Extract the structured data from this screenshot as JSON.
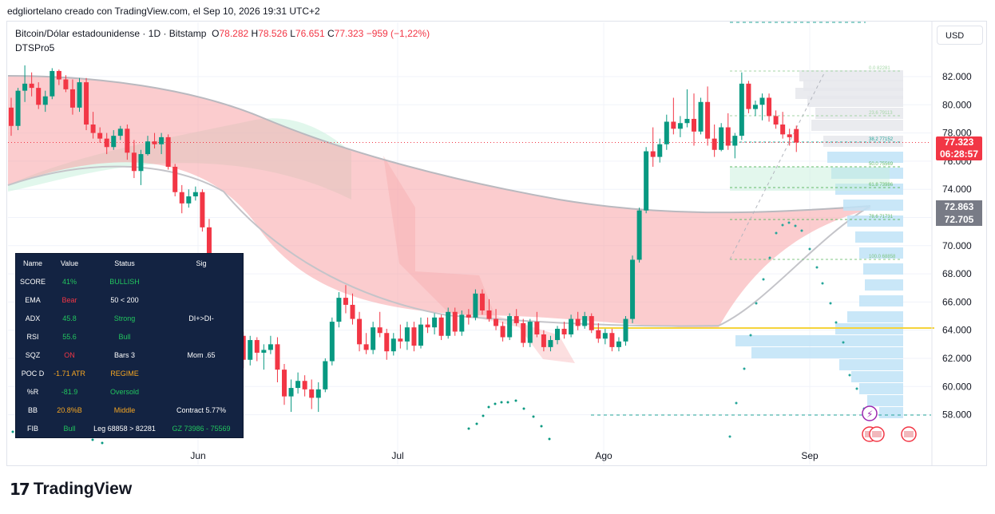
{
  "header": {
    "author_line": "edgliortelano creado con TradingView.com, el Sep 10, 2026 19:31 UTC+2"
  },
  "symbol": {
    "name": "Bitcoin/Dólar estadounidense · 1D · Bitstamp",
    "o_label": "O",
    "o_value": "78.282",
    "h_label": "H",
    "h_value": "78.526",
    "l_label": "L",
    "l_value": "76.651",
    "c_label": "C",
    "c_value": "77.323",
    "change": "−959 (−1,22%)"
  },
  "indicator_name": "DTSPro5",
  "currency_button": "USD",
  "price_labels": {
    "last": "77.323",
    "countdown": "06:28:57",
    "level_a": "72.863",
    "level_b": "72.705"
  },
  "colors": {
    "up": "#089981",
    "down": "#f23645",
    "cloud_red": "#f7a3a6",
    "cloud_green": "#c8f0dc",
    "volume_profile": "#bfe3f7",
    "poc_line": "#f5d33b",
    "table_bg": "#132342"
  },
  "fib": [
    {
      "label": "0.0 82281"
    },
    {
      "label": "23.6 79113"
    },
    {
      "label": "38.2 77152"
    },
    {
      "label": "50.0 75569"
    },
    {
      "label": "61.8 73986"
    },
    {
      "label": "78.6 71731"
    },
    {
      "label": "100.0 68858"
    }
  ],
  "table": {
    "headers": [
      "Name",
      "Value",
      "Status",
      "Sig"
    ],
    "rows": [
      {
        "name": "SCORE",
        "value": "41%",
        "value_color": "#22c55e",
        "status": "BULLISH",
        "status_color": "#22c55e",
        "sig": ""
      },
      {
        "name": "EMA",
        "value": "Bear",
        "value_color": "#f23645",
        "status": "50 < 200",
        "status_color": "#ffffff",
        "sig": ""
      },
      {
        "name": "ADX",
        "value": "45.8",
        "value_color": "#22c55e",
        "status": "Strong",
        "status_color": "#22c55e",
        "sig": "DI+>DI-"
      },
      {
        "name": "RSI",
        "value": "55.6",
        "value_color": "#22c55e",
        "status": "Bull",
        "status_color": "#22c55e",
        "sig": ""
      },
      {
        "name": "SQZ",
        "value": "ON",
        "value_color": "#f23645",
        "status": "Bars 3",
        "status_color": "#ffffff",
        "sig": "Mom .65"
      },
      {
        "name": "POC D",
        "value": "-1.71 ATR",
        "value_color": "#f5a623",
        "status": "REGIME",
        "status_color": "#f5a623",
        "sig": ""
      },
      {
        "name": "%R",
        "value": "-81.9",
        "value_color": "#22c55e",
        "status": "Oversold",
        "status_color": "#22c55e",
        "sig": ""
      },
      {
        "name": "BB",
        "value": "20.8%B",
        "value_color": "#f5a623",
        "status": "Middle",
        "status_color": "#f5a623",
        "sig": "Contract 5.77%"
      },
      {
        "name": "FIB",
        "value": "Bull",
        "value_color": "#22c55e",
        "status": "Leg 68858 > 82281",
        "status_color": "#ffffff",
        "sig": "GZ 73986 - 75569",
        "sig_color": "#22c55e"
      }
    ]
  },
  "chart_data": {
    "type": "candlestick",
    "y_ticks": [
      "82.000",
      "80.000",
      "78.000",
      "76.000",
      "74.000",
      "72.000",
      "70.000",
      "68.000",
      "66.000",
      "64.000",
      "62.000",
      "60.000",
      "58.000"
    ],
    "x_ticks": [
      "Jun",
      "Jul",
      "Ago",
      "Sep"
    ],
    "ylim": [
      57000,
      83500
    ],
    "last_close": 77323,
    "poc_level": 64100,
    "ohlc": [
      [
        79800,
        80500,
        77800,
        78500
      ],
      [
        78500,
        81200,
        78200,
        81000
      ],
      [
        81000,
        82800,
        80200,
        81500
      ],
      [
        81500,
        82300,
        80600,
        81200
      ],
      [
        81200,
        81600,
        79700,
        80000
      ],
      [
        80000,
        81000,
        79500,
        80600
      ],
      [
        80600,
        82600,
        80400,
        82400
      ],
      [
        82400,
        82500,
        81400,
        81800
      ],
      [
        81800,
        82100,
        80900,
        81100
      ],
      [
        81100,
        81800,
        79300,
        79800
      ],
      [
        79800,
        81900,
        79500,
        81600
      ],
      [
        81600,
        81900,
        78200,
        78600
      ],
      [
        78600,
        79500,
        77600,
        78000
      ],
      [
        78000,
        78400,
        77300,
        77600
      ],
      [
        77600,
        78000,
        76500,
        77000
      ],
      [
        77000,
        78200,
        76800,
        77800
      ],
      [
        77800,
        78500,
        77500,
        78300
      ],
      [
        78300,
        78600,
        76100,
        76600
      ],
      [
        76600,
        77500,
        74800,
        75300
      ],
      [
        75300,
        76800,
        74300,
        76500
      ],
      [
        76500,
        77800,
        76400,
        77400
      ],
      [
        77400,
        78000,
        76900,
        77200
      ],
      [
        77200,
        78000,
        76500,
        77700
      ],
      [
        77700,
        77900,
        75400,
        75600
      ],
      [
        75600,
        75800,
        73500,
        73800
      ],
      [
        73800,
        74300,
        72300,
        73000
      ],
      [
        73000,
        74000,
        72700,
        73500
      ],
      [
        73500,
        74200,
        73200,
        73800
      ],
      [
        73800,
        74000,
        71000,
        71300
      ],
      [
        71300,
        71900,
        67400,
        67800
      ],
      [
        67800,
        68200,
        64800,
        65200
      ],
      [
        65200,
        65800,
        61700,
        62100
      ],
      [
        62100,
        62500,
        59500,
        61000
      ],
      [
        61000,
        64300,
        60300,
        63600
      ],
      [
        63600,
        63900,
        61300,
        61900
      ],
      [
        61900,
        63600,
        61500,
        63300
      ],
      [
        63300,
        63500,
        61800,
        62400
      ],
      [
        62400,
        63000,
        61200,
        62600
      ],
      [
        62600,
        63600,
        62300,
        63000
      ],
      [
        63000,
        63500,
        60300,
        61200
      ],
      [
        61200,
        61600,
        58700,
        59300
      ],
      [
        59300,
        60500,
        58200,
        59900
      ],
      [
        59900,
        61000,
        59500,
        60400
      ],
      [
        60400,
        60800,
        59300,
        59800
      ],
      [
        59800,
        60500,
        58400,
        59200
      ],
      [
        59200,
        60300,
        58200,
        59800
      ],
      [
        59800,
        62000,
        59600,
        61800
      ],
      [
        61800,
        64900,
        61500,
        64600
      ],
      [
        64600,
        66700,
        64200,
        66300
      ],
      [
        66300,
        67200,
        65200,
        65800
      ],
      [
        65800,
        66600,
        64400,
        64800
      ],
      [
        64800,
        65300,
        62500,
        63000
      ],
      [
        63000,
        63800,
        62300,
        62600
      ],
      [
        62600,
        64600,
        62300,
        64200
      ],
      [
        64200,
        65300,
        63500,
        63800
      ],
      [
        63800,
        64100,
        61900,
        62500
      ],
      [
        62500,
        63800,
        62200,
        63400
      ],
      [
        63400,
        64400,
        62700,
        63200
      ],
      [
        63200,
        64600,
        62600,
        64200
      ],
      [
        64200,
        64600,
        62500,
        62900
      ],
      [
        62900,
        64900,
        62700,
        64400
      ],
      [
        64400,
        64900,
        63800,
        64200
      ],
      [
        64200,
        65200,
        63700,
        64900
      ],
      [
        64900,
        65100,
        63300,
        63600
      ],
      [
        63600,
        65600,
        63400,
        65300
      ],
      [
        65300,
        65600,
        63600,
        63900
      ],
      [
        63900,
        65400,
        63600,
        65100
      ],
      [
        65100,
        65500,
        64400,
        64900
      ],
      [
        64900,
        66900,
        64700,
        66600
      ],
      [
        66600,
        66900,
        65100,
        65400
      ],
      [
        65400,
        66200,
        64600,
        64800
      ],
      [
        64800,
        65500,
        64000,
        64300
      ],
      [
        64300,
        64600,
        63200,
        63500
      ],
      [
        63500,
        65200,
        63300,
        65000
      ],
      [
        65000,
        65500,
        64300,
        64500
      ],
      [
        64500,
        64800,
        62800,
        63100
      ],
      [
        63100,
        64800,
        62800,
        64600
      ],
      [
        64600,
        65300,
        63500,
        63700
      ],
      [
        63700,
        64000,
        62500,
        62800
      ],
      [
        62800,
        63600,
        62500,
        63300
      ],
      [
        63300,
        64300,
        63000,
        64100
      ],
      [
        64100,
        64600,
        63400,
        63700
      ],
      [
        63700,
        65100,
        63500,
        64800
      ],
      [
        64800,
        65300,
        64000,
        64300
      ],
      [
        64300,
        65300,
        64100,
        65000
      ],
      [
        65000,
        65200,
        63800,
        64000
      ],
      [
        64000,
        64500,
        63100,
        63400
      ],
      [
        63400,
        64100,
        63000,
        63800
      ],
      [
        63800,
        64100,
        62500,
        62800
      ],
      [
        62800,
        63500,
        62500,
        63200
      ],
      [
        63200,
        65000,
        62900,
        64800
      ],
      [
        64800,
        69300,
        64500,
        69000
      ],
      [
        69000,
        72700,
        68800,
        72500
      ],
      [
        72500,
        77000,
        72300,
        76700
      ],
      [
        76700,
        78400,
        75600,
        76300
      ],
      [
        76300,
        77600,
        75900,
        77200
      ],
      [
        77200,
        79300,
        76800,
        78800
      ],
      [
        78800,
        80500,
        77900,
        78300
      ],
      [
        78300,
        79200,
        77700,
        78700
      ],
      [
        78700,
        81100,
        78400,
        79000
      ],
      [
        79000,
        80800,
        77100,
        78100
      ],
      [
        78100,
        80500,
        77900,
        80200
      ],
      [
        80200,
        81300,
        77100,
        77600
      ],
      [
        77600,
        78600,
        76300,
        76800
      ],
      [
        76800,
        78700,
        76700,
        78400
      ],
      [
        78400,
        79400,
        76800,
        77100
      ],
      [
        77100,
        78000,
        76200,
        77800
      ],
      [
        77800,
        82300,
        77500,
        81500
      ],
      [
        81500,
        81700,
        79400,
        79700
      ],
      [
        79700,
        80300,
        79200,
        80000
      ],
      [
        80000,
        80800,
        78900,
        80500
      ],
      [
        80500,
        80800,
        78800,
        79200
      ],
      [
        79200,
        79600,
        78300,
        78600
      ],
      [
        78600,
        79500,
        77600,
        77900
      ],
      [
        77900,
        78300,
        77100,
        77700
      ],
      [
        78282,
        78526,
        76651,
        77323
      ]
    ]
  }
}
